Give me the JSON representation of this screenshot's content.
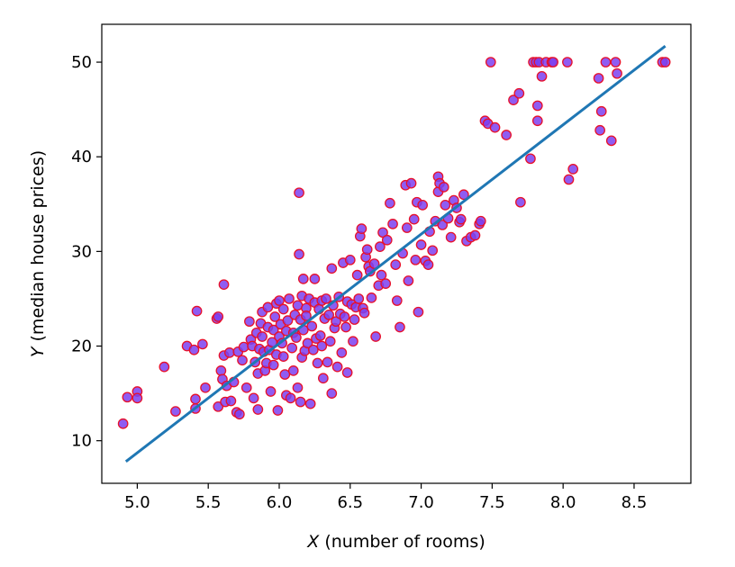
{
  "chart_data": {
    "type": "scatter",
    "xlabel": {
      "var": "X",
      "text": " (number of rooms)"
    },
    "ylabel": {
      "var": "Y",
      "text": " (median house prices)"
    },
    "xlim": [
      4.75,
      8.9
    ],
    "ylim": [
      5.5,
      54
    ],
    "xticks": [
      "5.0",
      "5.5",
      "6.0",
      "6.5",
      "7.0",
      "7.5",
      "8.0",
      "8.5"
    ],
    "yticks": [
      "10",
      "20",
      "30",
      "40",
      "50"
    ],
    "grid": false,
    "colors": {
      "marker_fill": "#7b3ff0",
      "marker_edge": "#e8102a",
      "line": "#1f77b4"
    },
    "fit_line": {
      "x": [
        4.92,
        8.72
      ],
      "y": [
        7.8,
        51.7
      ]
    },
    "points": [
      [
        4.9,
        11.8
      ],
      [
        4.93,
        14.6
      ],
      [
        5.0,
        15.2
      ],
      [
        5.0,
        14.5
      ],
      [
        5.19,
        17.8
      ],
      [
        5.27,
        13.1
      ],
      [
        5.35,
        20.0
      ],
      [
        5.4,
        19.6
      ],
      [
        5.41,
        14.4
      ],
      [
        5.41,
        13.4
      ],
      [
        5.42,
        23.7
      ],
      [
        5.46,
        20.2
      ],
      [
        5.48,
        15.6
      ],
      [
        5.56,
        22.9
      ],
      [
        5.57,
        23.1
      ],
      [
        5.57,
        13.6
      ],
      [
        5.59,
        17.4
      ],
      [
        5.6,
        16.5
      ],
      [
        5.61,
        19.0
      ],
      [
        5.61,
        26.5
      ],
      [
        5.62,
        14.1
      ],
      [
        5.63,
        15.8
      ],
      [
        5.65,
        19.3
      ],
      [
        5.66,
        14.2
      ],
      [
        5.68,
        16.2
      ],
      [
        5.7,
        13.0
      ],
      [
        5.71,
        19.4
      ],
      [
        5.72,
        12.8
      ],
      [
        5.74,
        18.5
      ],
      [
        5.75,
        19.9
      ],
      [
        5.77,
        15.6
      ],
      [
        5.79,
        22.6
      ],
      [
        5.8,
        20.7
      ],
      [
        5.81,
        20.0
      ],
      [
        5.82,
        14.5
      ],
      [
        5.83,
        18.3
      ],
      [
        5.84,
        21.4
      ],
      [
        5.85,
        17.1
      ],
      [
        5.85,
        13.3
      ],
      [
        5.86,
        19.7
      ],
      [
        5.87,
        22.4
      ],
      [
        5.88,
        21.0
      ],
      [
        5.88,
        23.6
      ],
      [
        5.89,
        19.4
      ],
      [
        5.9,
        17.4
      ],
      [
        5.91,
        18.2
      ],
      [
        5.92,
        22.0
      ],
      [
        5.92,
        24.1
      ],
      [
        5.93,
        19.6
      ],
      [
        5.94,
        15.2
      ],
      [
        5.95,
        20.4
      ],
      [
        5.96,
        21.7
      ],
      [
        5.96,
        18.0
      ],
      [
        5.97,
        23.1
      ],
      [
        5.98,
        24.5
      ],
      [
        5.98,
        19.1
      ],
      [
        5.99,
        13.2
      ],
      [
        6.0,
        24.8
      ],
      [
        6.0,
        21.0
      ],
      [
        6.01,
        22.3
      ],
      [
        6.02,
        20.3
      ],
      [
        6.03,
        18.9
      ],
      [
        6.03,
        23.9
      ],
      [
        6.04,
        17.0
      ],
      [
        6.05,
        21.6
      ],
      [
        6.05,
        14.8
      ],
      [
        6.06,
        22.7
      ],
      [
        6.07,
        25.0
      ],
      [
        6.08,
        14.5
      ],
      [
        6.09,
        19.8
      ],
      [
        6.1,
        21.4
      ],
      [
        6.1,
        17.4
      ],
      [
        6.11,
        23.3
      ],
      [
        6.12,
        20.9
      ],
      [
        6.13,
        24.3
      ],
      [
        6.13,
        15.6
      ],
      [
        6.14,
        36.2
      ],
      [
        6.14,
        29.7
      ],
      [
        6.15,
        22.8
      ],
      [
        6.15,
        14.1
      ],
      [
        6.16,
        25.3
      ],
      [
        6.16,
        18.8
      ],
      [
        6.17,
        27.1
      ],
      [
        6.17,
        21.7
      ],
      [
        6.18,
        19.5
      ],
      [
        6.19,
        24.0
      ],
      [
        6.19,
        23.2
      ],
      [
        6.2,
        20.3
      ],
      [
        6.21,
        25.0
      ],
      [
        6.22,
        13.9
      ],
      [
        6.23,
        22.1
      ],
      [
        6.24,
        19.6
      ],
      [
        6.25,
        24.6
      ],
      [
        6.25,
        27.1
      ],
      [
        6.26,
        20.8
      ],
      [
        6.27,
        18.2
      ],
      [
        6.28,
        23.9
      ],
      [
        6.29,
        21.1
      ],
      [
        6.3,
        24.8
      ],
      [
        6.3,
        20.0
      ],
      [
        6.31,
        16.6
      ],
      [
        6.32,
        22.9
      ],
      [
        6.33,
        25.0
      ],
      [
        6.34,
        18.3
      ],
      [
        6.35,
        23.3
      ],
      [
        6.36,
        20.5
      ],
      [
        6.37,
        28.2
      ],
      [
        6.37,
        15.0
      ],
      [
        6.38,
        24.3
      ],
      [
        6.39,
        21.9
      ],
      [
        6.4,
        22.6
      ],
      [
        6.41,
        17.8
      ],
      [
        6.42,
        25.2
      ],
      [
        6.43,
        23.4
      ],
      [
        6.44,
        19.3
      ],
      [
        6.45,
        28.8
      ],
      [
        6.46,
        23.1
      ],
      [
        6.47,
        22.0
      ],
      [
        6.48,
        24.7
      ],
      [
        6.48,
        17.2
      ],
      [
        6.5,
        29.1
      ],
      [
        6.51,
        24.4
      ],
      [
        6.52,
        20.5
      ],
      [
        6.53,
        22.8
      ],
      [
        6.54,
        24.1
      ],
      [
        6.55,
        27.5
      ],
      [
        6.56,
        25.0
      ],
      [
        6.57,
        31.6
      ],
      [
        6.58,
        32.4
      ],
      [
        6.59,
        24.0
      ],
      [
        6.6,
        23.5
      ],
      [
        6.61,
        29.4
      ],
      [
        6.62,
        30.2
      ],
      [
        6.63,
        28.4
      ],
      [
        6.64,
        27.9
      ],
      [
        6.65,
        25.1
      ],
      [
        6.67,
        28.7
      ],
      [
        6.68,
        21.0
      ],
      [
        6.7,
        26.4
      ],
      [
        6.71,
        30.5
      ],
      [
        6.72,
        27.5
      ],
      [
        6.73,
        32.0
      ],
      [
        6.75,
        26.6
      ],
      [
        6.76,
        31.2
      ],
      [
        6.78,
        35.1
      ],
      [
        6.8,
        32.9
      ],
      [
        6.82,
        28.6
      ],
      [
        6.83,
        24.8
      ],
      [
        6.85,
        22.0
      ],
      [
        6.87,
        29.8
      ],
      [
        6.89,
        37.0
      ],
      [
        6.9,
        32.5
      ],
      [
        6.91,
        26.9
      ],
      [
        6.93,
        37.2
      ],
      [
        6.95,
        33.4
      ],
      [
        6.96,
        29.1
      ],
      [
        6.97,
        35.2
      ],
      [
        6.98,
        23.6
      ],
      [
        7.0,
        30.7
      ],
      [
        7.01,
        34.9
      ],
      [
        7.03,
        29.0
      ],
      [
        7.05,
        28.6
      ],
      [
        7.06,
        32.1
      ],
      [
        7.08,
        30.1
      ],
      [
        7.1,
        33.2
      ],
      [
        7.12,
        36.3
      ],
      [
        7.12,
        37.9
      ],
      [
        7.13,
        37.2
      ],
      [
        7.15,
        32.8
      ],
      [
        7.16,
        36.8
      ],
      [
        7.17,
        34.9
      ],
      [
        7.19,
        33.5
      ],
      [
        7.21,
        31.5
      ],
      [
        7.23,
        35.4
      ],
      [
        7.25,
        34.6
      ],
      [
        7.27,
        33.1
      ],
      [
        7.28,
        33.4
      ],
      [
        7.3,
        36.0
      ],
      [
        7.32,
        31.1
      ],
      [
        7.35,
        31.5
      ],
      [
        7.38,
        31.7
      ],
      [
        7.41,
        32.9
      ],
      [
        7.42,
        33.2
      ],
      [
        7.45,
        43.8
      ],
      [
        7.47,
        43.5
      ],
      [
        7.49,
        50.0
      ],
      [
        7.52,
        43.1
      ],
      [
        7.6,
        42.3
      ],
      [
        7.65,
        46.0
      ],
      [
        7.69,
        46.7
      ],
      [
        7.7,
        35.2
      ],
      [
        7.77,
        39.8
      ],
      [
        7.79,
        50.0
      ],
      [
        7.81,
        50.0
      ],
      [
        7.82,
        45.4
      ],
      [
        7.82,
        43.8
      ],
      [
        7.83,
        50.0
      ],
      [
        7.85,
        48.5
      ],
      [
        7.88,
        50.0
      ],
      [
        7.92,
        50.0
      ],
      [
        7.93,
        50.0
      ],
      [
        8.03,
        50.0
      ],
      [
        8.04,
        37.6
      ],
      [
        8.07,
        38.7
      ],
      [
        8.25,
        48.3
      ],
      [
        8.26,
        42.8
      ],
      [
        8.27,
        44.8
      ],
      [
        8.3,
        50.0
      ],
      [
        8.34,
        41.7
      ],
      [
        8.37,
        50.0
      ],
      [
        8.38,
        48.8
      ],
      [
        8.7,
        50.0
      ],
      [
        8.72,
        50.0
      ]
    ]
  }
}
